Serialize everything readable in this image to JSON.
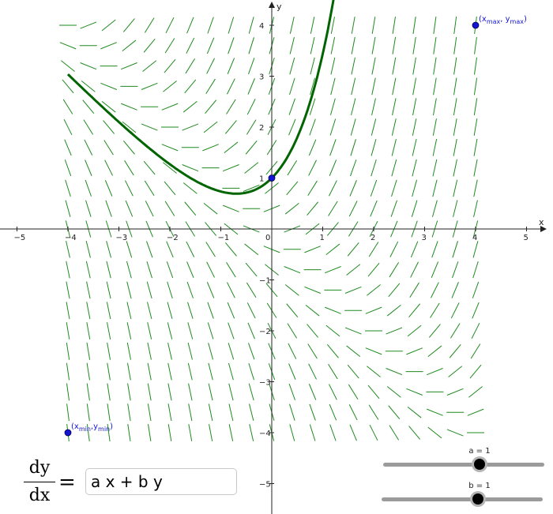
{
  "graph": {
    "axes": {
      "x_label": "x",
      "y_label": "y",
      "x_ticks": [
        "−5",
        "−4",
        "−3",
        "−2",
        "−1",
        "0",
        "1",
        "2",
        "3",
        "4",
        "5"
      ],
      "y_ticks": [
        "4",
        "3",
        "2",
        "1",
        "−1",
        "−2",
        "−3",
        "−4",
        "−5"
      ]
    },
    "colors": {
      "slope_field": "#1e8a1e",
      "solution_curve": "#006400",
      "point": "#1414d2",
      "point_label": "#1414d2"
    },
    "slope_field": {
      "x_range": [
        -4,
        4
      ],
      "y_range": [
        -4,
        4
      ],
      "step": 0.4
    },
    "solution": {
      "initial_point": [
        0,
        1
      ],
      "x_range": [
        -4,
        1.5
      ]
    },
    "points": [
      {
        "name": "initial-point",
        "x": 0,
        "y": 1
      },
      {
        "name": "max-point",
        "x": 4,
        "y": 4,
        "label_pre": "(x",
        "label_sub1": "max",
        "label_mid": ", y",
        "label_sub2": "max",
        "label_post": ")"
      },
      {
        "name": "min-point",
        "x": -4,
        "y": -4,
        "label_pre": "(x",
        "label_sub1": "min",
        "label_mid": ",y",
        "label_sub2": "min",
        "label_post": ")"
      }
    ]
  },
  "equation": {
    "numerator": "dy",
    "denominator": "dx",
    "equals": "=",
    "input_value": "a x + b y"
  },
  "sliders": [
    {
      "name": "a",
      "label": "a = 1",
      "value": 1
    },
    {
      "name": "b",
      "label": "b = 1",
      "value": 1
    }
  ]
}
